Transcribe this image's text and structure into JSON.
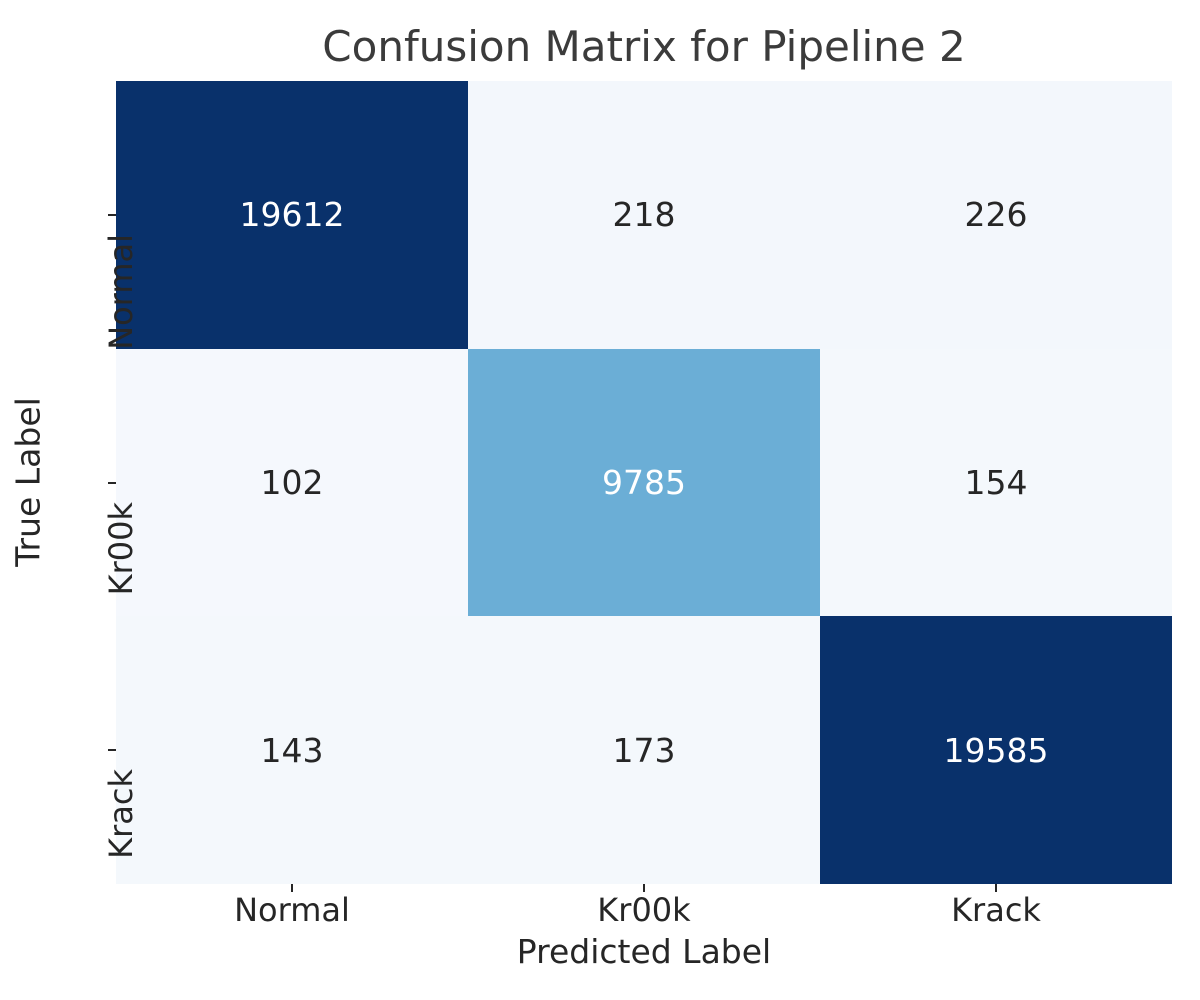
{
  "title": "Confusion Matrix for Pipeline 2",
  "chart_data": {
    "type": "heatmap",
    "title": "Confusion Matrix for Pipeline 2",
    "xlabel": "Predicted Label",
    "ylabel": "True Label",
    "x_categories": [
      "Normal",
      "Kr00k",
      "Krack"
    ],
    "y_categories": [
      "Normal",
      "Kr00k",
      "Krack"
    ],
    "matrix": [
      [
        19612,
        218,
        226
      ],
      [
        102,
        9785,
        154
      ],
      [
        143,
        173,
        19585
      ]
    ],
    "vmin": 0,
    "vmax": 19612,
    "colormap": "Blues",
    "grid": false,
    "legend": "none",
    "annotations_shown": true
  },
  "colors": {
    "cmap_low": "#f6f9fd",
    "cmap_mid": "#6baed6",
    "cmap_high": "#09316b",
    "annot_dark": "#262626",
    "annot_light": "#ffffff",
    "title_color": "#3b3b3b",
    "text_color": "#262626",
    "tick_color": "#262626",
    "background": "#ffffff"
  }
}
